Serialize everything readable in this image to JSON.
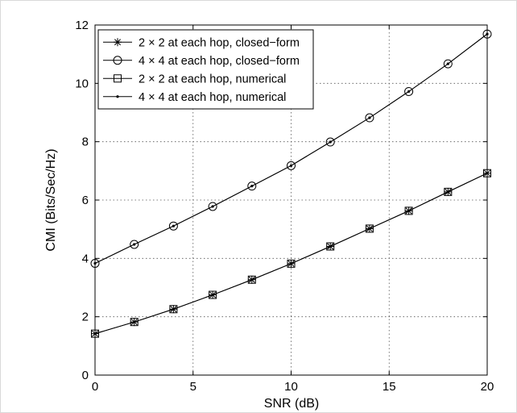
{
  "chart_data": {
    "type": "line",
    "xlabel": "SNR (dB)",
    "ylabel": "CMI (Bits/Sec/Hz)",
    "xlim": [
      0,
      20
    ],
    "ylim": [
      0,
      12
    ],
    "xticks": [
      0,
      5,
      10,
      15,
      20
    ],
    "yticks": [
      0,
      2,
      4,
      6,
      8,
      10,
      12
    ],
    "grid": true,
    "legend_position": "top-left",
    "x": [
      0,
      2,
      4,
      6,
      8,
      10,
      12,
      14,
      16,
      18,
      20
    ],
    "series": [
      {
        "name": "2 × 2 at each hop, closed−form",
        "marker": "star",
        "values": [
          1.42,
          1.82,
          2.26,
          2.75,
          3.27,
          3.82,
          4.41,
          5.02,
          5.63,
          6.28,
          6.92
        ]
      },
      {
        "name": "4 × 4 at each hop, closed−form",
        "marker": "circle",
        "values": [
          3.83,
          4.48,
          5.11,
          5.78,
          6.48,
          7.18,
          7.99,
          8.82,
          9.72,
          10.67,
          11.69
        ]
      },
      {
        "name": "2 × 2 at each hop, numerical",
        "marker": "square",
        "values": [
          1.42,
          1.82,
          2.26,
          2.75,
          3.27,
          3.82,
          4.41,
          5.02,
          5.63,
          6.28,
          6.92
        ]
      },
      {
        "name": "4 × 4 at each hop, numerical",
        "marker": "dot",
        "values": [
          3.83,
          4.48,
          5.11,
          5.78,
          6.48,
          7.18,
          7.99,
          8.82,
          9.72,
          10.67,
          11.69
        ]
      }
    ]
  }
}
